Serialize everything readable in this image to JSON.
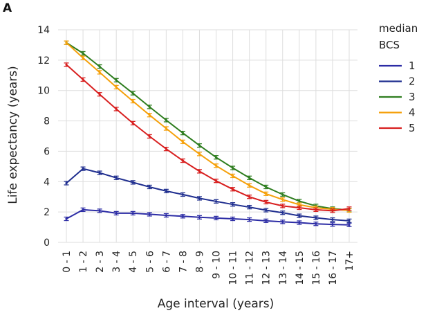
{
  "panel_label": "A",
  "colors": {
    "1": "#2c2ca5",
    "2": "#1f2e8f",
    "3": "#2e7d1f",
    "4": "#f5a00a",
    "5": "#d81f1f",
    "grid": "#dddddd"
  },
  "chart_data": {
    "type": "line",
    "xlabel": "Age interval (years)",
    "ylabel": "Life expectancy (years)",
    "ylim": [
      0,
      14
    ],
    "yticks": [
      0,
      2,
      4,
      6,
      8,
      10,
      12,
      14
    ],
    "grid": true,
    "legend": {
      "title_line1": "median",
      "title_line2": "BCS",
      "placement": "right"
    },
    "categories": [
      "0 - 1",
      "1 - 2",
      "2 - 3",
      "3 - 4",
      "4 - 5",
      "5 - 6",
      "6 - 7",
      "7 - 8",
      "8 - 9",
      "9 - 10",
      "10 - 11",
      "11 - 12",
      "12 - 13",
      "13 - 14",
      "14 - 15",
      "15 - 16",
      "16 - 17",
      "17+"
    ],
    "series": [
      {
        "name": "1",
        "values": [
          1.55,
          2.15,
          2.08,
          1.92,
          1.92,
          1.85,
          1.78,
          1.72,
          1.65,
          1.6,
          1.55,
          1.5,
          1.42,
          1.35,
          1.3,
          1.22,
          1.18,
          1.15
        ]
      },
      {
        "name": "2",
        "values": [
          3.9,
          4.85,
          4.58,
          4.25,
          3.95,
          3.65,
          3.38,
          3.15,
          2.9,
          2.7,
          2.5,
          2.32,
          2.12,
          1.95,
          1.75,
          1.62,
          1.5,
          1.42
        ]
      },
      {
        "name": "3",
        "values": [
          13.15,
          12.45,
          11.58,
          10.68,
          9.82,
          8.92,
          8.05,
          7.2,
          6.38,
          5.6,
          4.9,
          4.25,
          3.65,
          3.15,
          2.72,
          2.4,
          2.22,
          2.12
        ]
      },
      {
        "name": "4",
        "values": [
          13.15,
          12.15,
          11.2,
          10.22,
          9.3,
          8.38,
          7.5,
          6.62,
          5.82,
          5.05,
          4.38,
          3.75,
          3.2,
          2.82,
          2.48,
          2.28,
          2.18,
          2.1
        ]
      },
      {
        "name": "5",
        "values": [
          11.7,
          10.72,
          9.75,
          8.78,
          7.85,
          6.98,
          6.15,
          5.38,
          4.68,
          4.05,
          3.5,
          3.0,
          2.65,
          2.4,
          2.28,
          2.15,
          2.08,
          2.22
        ]
      }
    ]
  }
}
